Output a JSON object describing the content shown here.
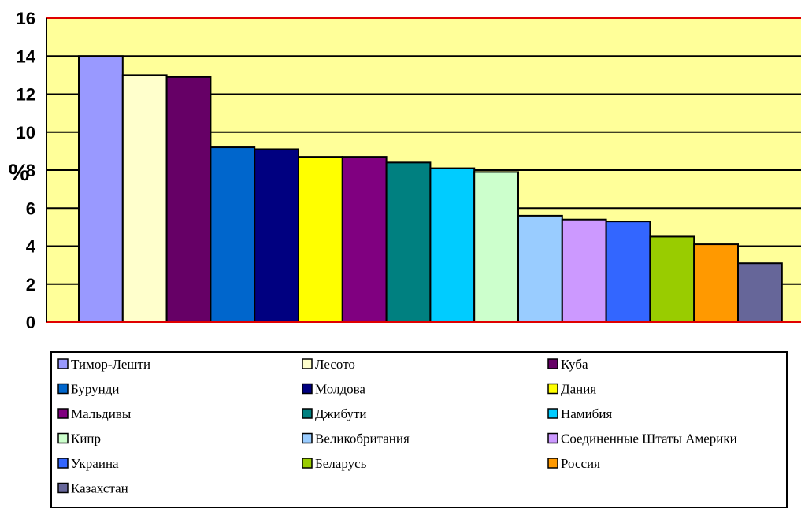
{
  "chart_data": {
    "type": "bar",
    "title": "",
    "xlabel": "",
    "ylabel": "%",
    "ylim": [
      0,
      16
    ],
    "yticks": [
      0,
      2,
      4,
      6,
      8,
      10,
      12,
      14,
      16
    ],
    "grid": true,
    "legend_position": "bottom",
    "categories": [
      "Тимор-Лешти",
      "Лесото",
      "Куба",
      "Бурунди",
      "Молдова",
      "Дания",
      "Мальдивы",
      "Джибути",
      "Намибия",
      "Кипр",
      "Великобритания",
      "Соединенные Штаты Америки",
      "Украина",
      "Беларусь",
      "Россия",
      "Казахстан"
    ],
    "values": [
      14.0,
      13.0,
      12.9,
      9.2,
      9.1,
      8.7,
      8.7,
      8.4,
      8.1,
      7.9,
      5.6,
      5.4,
      5.3,
      4.5,
      4.1,
      3.1
    ],
    "colors": [
      "#9999ff",
      "#ffffcc",
      "#660066",
      "#0066cc",
      "#000080",
      "#ffff00",
      "#800080",
      "#008080",
      "#00ccff",
      "#ccffcc",
      "#99ccff",
      "#cc99ff",
      "#3366ff",
      "#99cc00",
      "#ff9900",
      "#666699"
    ],
    "plot_background": "#ffff99",
    "axis_color": "#e00000"
  }
}
